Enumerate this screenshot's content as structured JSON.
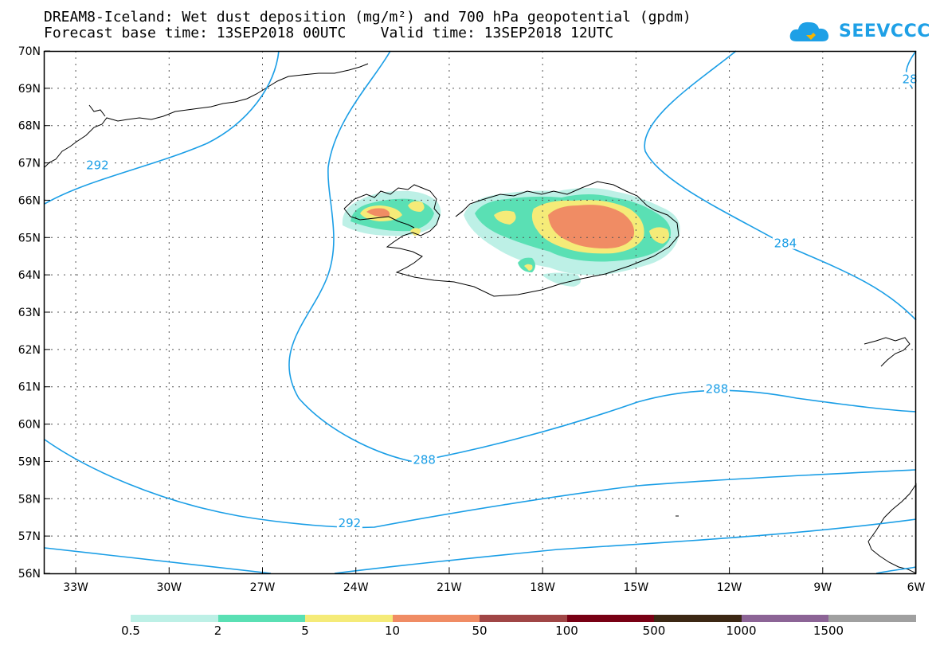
{
  "header": {
    "title_line1": "DREAM8-Iceland: Wet dust deposition (mg/m²) and 700 hPa geopotential (gpdm)",
    "title_line2": "Forecast base time: 13SEP2018 00UTC    Valid time: 13SEP2018 12UTC"
  },
  "logo": {
    "text": "SEEVCCC",
    "icon": "cloud-icon",
    "color": "#1ea0e6"
  },
  "map": {
    "lon_range": [
      -34,
      -6
    ],
    "lat_range": [
      56,
      70
    ],
    "lon_ticks": [
      {
        "value": -33,
        "label": "33W"
      },
      {
        "value": -30,
        "label": "30W"
      },
      {
        "value": -27,
        "label": "27W"
      },
      {
        "value": -24,
        "label": "24W"
      },
      {
        "value": -21,
        "label": "21W"
      },
      {
        "value": -18,
        "label": "18W"
      },
      {
        "value": -15,
        "label": "15W"
      },
      {
        "value": -12,
        "label": "12W"
      },
      {
        "value": -9,
        "label": "9W"
      },
      {
        "value": -6,
        "label": "6W"
      }
    ],
    "lat_ticks": [
      {
        "value": 70,
        "label": "70N"
      },
      {
        "value": 69,
        "label": "69N"
      },
      {
        "value": 68,
        "label": "68N"
      },
      {
        "value": 67,
        "label": "67N"
      },
      {
        "value": 66,
        "label": "66N"
      },
      {
        "value": 65,
        "label": "65N"
      },
      {
        "value": 64,
        "label": "64N"
      },
      {
        "value": 63,
        "label": "63N"
      },
      {
        "value": 62,
        "label": "62N"
      },
      {
        "value": 61,
        "label": "61N"
      },
      {
        "value": 60,
        "label": "60N"
      },
      {
        "value": 59,
        "label": "59N"
      },
      {
        "value": 58,
        "label": "58N"
      },
      {
        "value": 57,
        "label": "57N"
      },
      {
        "value": 56,
        "label": "56N"
      }
    ],
    "contour_color": "#1a9ee6",
    "contour_labels": [
      {
        "text": "292",
        "lon": -32.3,
        "lat": 66.9
      },
      {
        "text": "284",
        "lon": -10.2,
        "lat": 64.8
      },
      {
        "text": "288",
        "lon": -12.4,
        "lat": 60.9
      },
      {
        "text": "288",
        "lon": -21.8,
        "lat": 59.0
      },
      {
        "text": "292",
        "lon": -24.2,
        "lat": 57.3
      },
      {
        "text": "28",
        "lon": -6.2,
        "lat": 69.2
      }
    ]
  },
  "legend": {
    "colors": [
      "#bdf0e6",
      "#5ae0b4",
      "#f5eb78",
      "#f08c64",
      "#a04646",
      "#780014",
      "#3c2814",
      "#8c6496",
      "#a0a0a0"
    ],
    "labels": [
      "0.5",
      "2",
      "5",
      "10",
      "50",
      "100",
      "500",
      "1000",
      "1500"
    ]
  }
}
